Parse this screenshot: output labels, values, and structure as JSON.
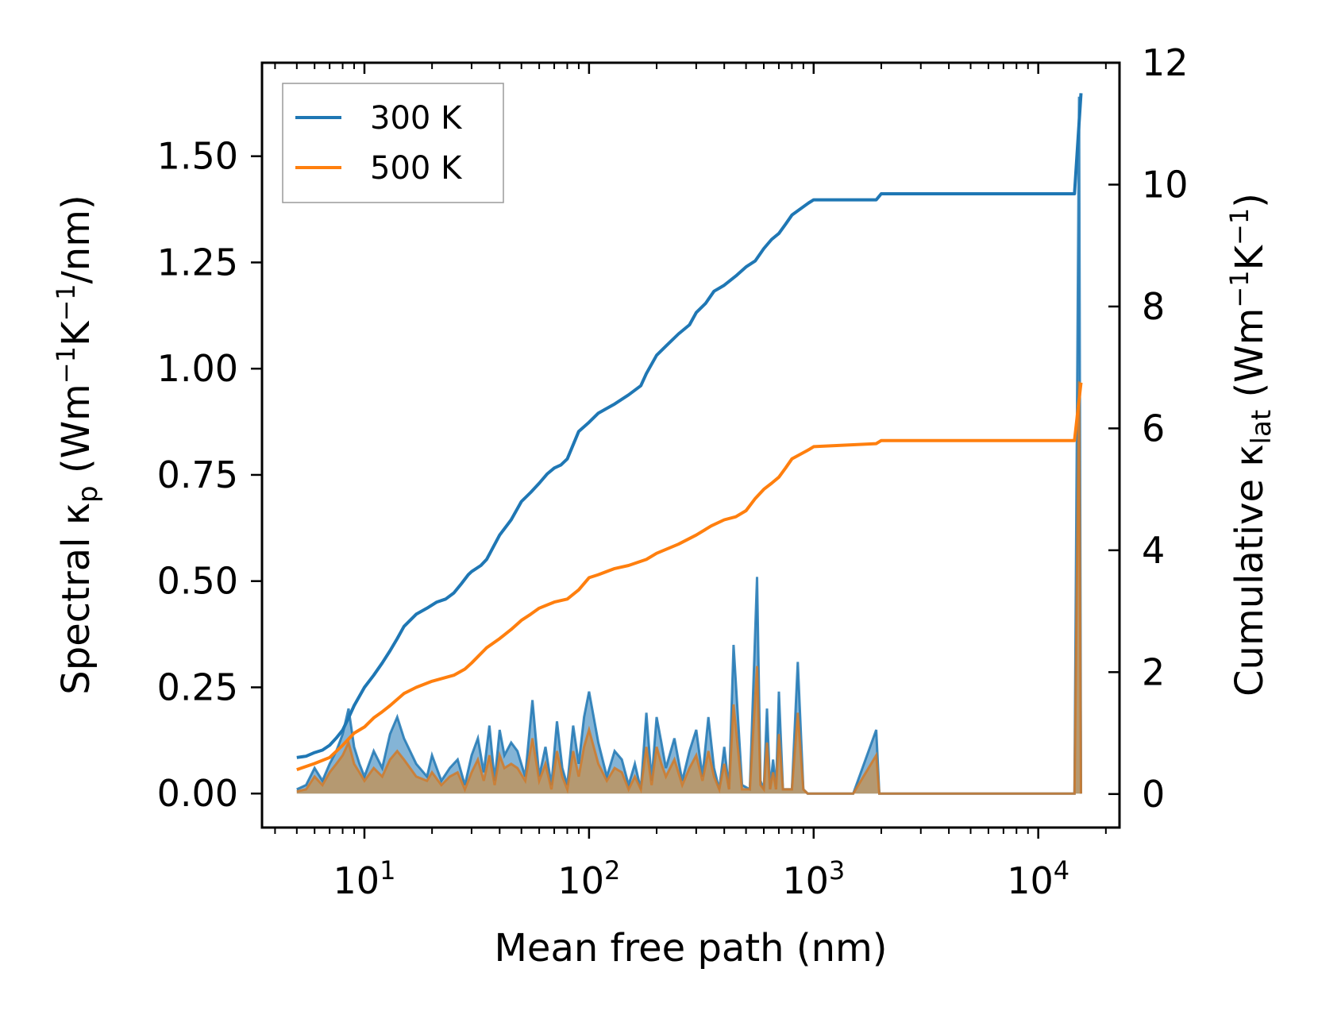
{
  "chart_data": {
    "type": "line",
    "xscale": "log",
    "xlabel": "Mean free path (nm)",
    "ylabel_left": {
      "prefix": "Spectral κ",
      "sub": "p",
      "units": " (Wm",
      "sup1": "−1",
      "mid": "K",
      "sup2": "−1",
      "tail": "/nm)"
    },
    "ylabel_right": {
      "prefix": "Cumulative κ",
      "sub": "lat",
      "units": " (Wm",
      "sup1": "−1",
      "mid": "K",
      "sup2": "−1",
      "tail": ")"
    },
    "xlim": [
      3.5,
      23000
    ],
    "ylim_left": [
      -0.08,
      1.72
    ],
    "ylim_right": [
      -0.55,
      12
    ],
    "x_ticks": [
      {
        "value": 10,
        "base": "10",
        "exp": "1"
      },
      {
        "value": 100,
        "base": "10",
        "exp": "2"
      },
      {
        "value": 1000,
        "base": "10",
        "exp": "3"
      },
      {
        "value": 10000,
        "base": "10",
        "exp": "4"
      }
    ],
    "y_left_ticks": [
      0,
      0.25,
      0.5,
      0.75,
      1.0,
      1.25,
      1.5
    ],
    "y_left_tick_labels": [
      "0.00",
      "0.25",
      "0.50",
      "0.75",
      "1.00",
      "1.25",
      "1.50"
    ],
    "y_right_ticks": [
      0,
      2,
      4,
      6,
      8,
      10,
      12
    ],
    "y_right_tick_labels": [
      "0",
      "2",
      "4",
      "6",
      "8",
      "10",
      "12"
    ],
    "legend": {
      "position": "top-left",
      "entries": [
        "300 K",
        "500 K"
      ]
    },
    "colors": {
      "300 K": "#1f77b4",
      "500 K": "#ff7f0e",
      "fill_300": "#1f77b4",
      "fill_500": "#d08a3a"
    },
    "series": [
      {
        "name": "300 K",
        "kind": "cumulative",
        "axis": "right",
        "x": [
          5,
          5.5,
          6,
          6.5,
          7,
          7.5,
          8,
          8.5,
          9,
          10,
          11,
          12,
          13,
          14,
          15,
          17,
          19,
          21,
          23,
          25,
          27,
          29,
          30,
          33,
          35,
          40,
          45,
          50,
          55,
          60,
          65,
          70,
          75,
          80,
          90,
          100,
          110,
          130,
          150,
          170,
          180,
          200,
          220,
          250,
          280,
          300,
          330,
          360,
          380,
          400,
          450,
          500,
          550,
          600,
          650,
          700,
          750,
          800,
          950,
          1000,
          1900,
          2000,
          3000,
          5000,
          8000,
          12000,
          14500,
          15500
        ],
        "y": [
          0.6,
          0.62,
          0.68,
          0.72,
          0.8,
          0.92,
          1.05,
          1.25,
          1.45,
          1.75,
          1.95,
          2.15,
          2.35,
          2.55,
          2.75,
          2.95,
          3.05,
          3.15,
          3.2,
          3.3,
          3.45,
          3.6,
          3.65,
          3.75,
          3.85,
          4.25,
          4.5,
          4.8,
          4.95,
          5.1,
          5.25,
          5.35,
          5.4,
          5.5,
          5.95,
          6.1,
          6.25,
          6.4,
          6.55,
          6.7,
          6.9,
          7.2,
          7.35,
          7.55,
          7.7,
          7.9,
          8.05,
          8.25,
          8.3,
          8.35,
          8.5,
          8.65,
          8.75,
          8.95,
          9.1,
          9.2,
          9.35,
          9.5,
          9.7,
          9.75,
          9.75,
          9.85,
          9.85,
          9.85,
          9.85,
          9.85,
          9.85,
          11.5
        ]
      },
      {
        "name": "500 K",
        "kind": "cumulative",
        "axis": "right",
        "x": [
          5,
          6,
          7,
          8,
          9,
          10,
          11,
          12,
          13,
          15,
          17,
          20,
          25,
          28,
          30,
          35,
          40,
          45,
          50,
          55,
          60,
          70,
          80,
          90,
          100,
          110,
          130,
          150,
          180,
          200,
          250,
          300,
          350,
          400,
          450,
          500,
          550,
          600,
          650,
          700,
          750,
          800,
          950,
          1000,
          1900,
          2000,
          5000,
          10000,
          14500,
          15500
        ],
        "y": [
          0.4,
          0.5,
          0.6,
          0.8,
          1.0,
          1.1,
          1.25,
          1.35,
          1.45,
          1.65,
          1.75,
          1.85,
          1.95,
          2.05,
          2.15,
          2.4,
          2.55,
          2.7,
          2.85,
          2.95,
          3.05,
          3.15,
          3.2,
          3.35,
          3.55,
          3.6,
          3.7,
          3.75,
          3.85,
          3.95,
          4.1,
          4.25,
          4.4,
          4.5,
          4.55,
          4.65,
          4.85,
          5.0,
          5.1,
          5.2,
          5.35,
          5.5,
          5.65,
          5.7,
          5.75,
          5.8,
          5.8,
          5.8,
          5.8,
          6.75
        ]
      },
      {
        "name": "300 K spectral",
        "kind": "spectral",
        "axis": "left",
        "x": [
          5,
          5.5,
          6,
          6.5,
          7,
          7.5,
          8,
          8.5,
          9,
          9.5,
          10,
          11,
          12,
          13,
          14,
          15,
          17,
          19,
          20,
          22,
          24,
          26,
          28,
          30,
          32,
          34,
          36,
          38,
          40,
          42,
          45,
          48,
          52,
          56,
          60,
          64,
          68,
          72,
          76,
          80,
          85,
          90,
          95,
          100,
          110,
          120,
          130,
          140,
          150,
          160,
          170,
          180,
          190,
          200,
          210,
          220,
          240,
          260,
          280,
          300,
          320,
          340,
          360,
          380,
          400,
          420,
          440,
          480,
          520,
          560,
          580,
          600,
          620,
          640,
          660,
          680,
          700,
          730,
          760,
          800,
          850,
          900,
          940,
          980,
          1000,
          1200,
          1500,
          1900,
          1960,
          2000,
          2050,
          2200,
          3000,
          5000,
          8000,
          12000,
          14500,
          15200,
          15500
        ],
        "y": [
          0.01,
          0.02,
          0.06,
          0.03,
          0.07,
          0.1,
          0.14,
          0.2,
          0.11,
          0.07,
          0.04,
          0.1,
          0.06,
          0.14,
          0.18,
          0.13,
          0.07,
          0.04,
          0.09,
          0.03,
          0.06,
          0.08,
          0.02,
          0.09,
          0.13,
          0.05,
          0.16,
          0.03,
          0.15,
          0.09,
          0.12,
          0.1,
          0.04,
          0.22,
          0.04,
          0.11,
          0.02,
          0.17,
          0.06,
          0.02,
          0.16,
          0.07,
          0.18,
          0.24,
          0.12,
          0.04,
          0.1,
          0.08,
          0.02,
          0.07,
          0.01,
          0.19,
          0.03,
          0.18,
          0.12,
          0.06,
          0.13,
          0.03,
          0.1,
          0.15,
          0.04,
          0.18,
          0.06,
          0.01,
          0.11,
          0.01,
          0.35,
          0.02,
          0.01,
          0.51,
          0.03,
          0.01,
          0.2,
          0.01,
          0.08,
          0.01,
          0.24,
          0.01,
          0.01,
          0.01,
          0.31,
          0.01,
          0.0,
          0.0,
          0.0,
          0.0,
          0.0,
          0.15,
          0.0,
          0.0,
          0.0,
          0.0,
          0.0,
          0.0,
          0.0,
          0.0,
          0.0,
          1.64,
          0.0
        ]
      },
      {
        "name": "500 K spectral",
        "kind": "spectral",
        "axis": "left",
        "x": [
          5,
          5.5,
          6,
          6.5,
          7,
          7.5,
          8,
          8.5,
          9,
          9.5,
          10,
          11,
          12,
          13,
          14,
          15,
          17,
          19,
          20,
          22,
          24,
          26,
          28,
          30,
          32,
          34,
          36,
          38,
          40,
          42,
          45,
          48,
          52,
          56,
          60,
          64,
          68,
          72,
          76,
          80,
          85,
          90,
          95,
          100,
          110,
          120,
          130,
          140,
          150,
          160,
          170,
          180,
          190,
          200,
          210,
          220,
          240,
          260,
          280,
          300,
          320,
          340,
          360,
          380,
          400,
          420,
          440,
          480,
          520,
          560,
          580,
          600,
          620,
          640,
          660,
          680,
          700,
          730,
          760,
          800,
          850,
          900,
          940,
          980,
          1000,
          1200,
          1500,
          1900,
          1960,
          2000,
          2050,
          2200,
          3000,
          5000,
          8000,
          12000,
          14500,
          15200,
          15500
        ],
        "y": [
          0.005,
          0.01,
          0.04,
          0.02,
          0.05,
          0.07,
          0.09,
          0.12,
          0.07,
          0.05,
          0.03,
          0.06,
          0.04,
          0.08,
          0.1,
          0.08,
          0.04,
          0.03,
          0.05,
          0.02,
          0.04,
          0.05,
          0.01,
          0.05,
          0.08,
          0.03,
          0.09,
          0.02,
          0.09,
          0.06,
          0.07,
          0.06,
          0.03,
          0.13,
          0.03,
          0.07,
          0.01,
          0.1,
          0.04,
          0.01,
          0.1,
          0.04,
          0.11,
          0.15,
          0.07,
          0.03,
          0.06,
          0.05,
          0.01,
          0.04,
          0.01,
          0.11,
          0.02,
          0.11,
          0.07,
          0.04,
          0.08,
          0.02,
          0.06,
          0.09,
          0.03,
          0.1,
          0.04,
          0.01,
          0.07,
          0.01,
          0.21,
          0.01,
          0.01,
          0.3,
          0.02,
          0.01,
          0.12,
          0.01,
          0.05,
          0.01,
          0.14,
          0.01,
          0.01,
          0.01,
          0.19,
          0.01,
          0.0,
          0.0,
          0.0,
          0.0,
          0.0,
          0.09,
          0.0,
          0.0,
          0.0,
          0.0,
          0.0,
          0.0,
          0.0,
          0.0,
          0.0,
          0.97,
          0.0
        ]
      }
    ]
  }
}
